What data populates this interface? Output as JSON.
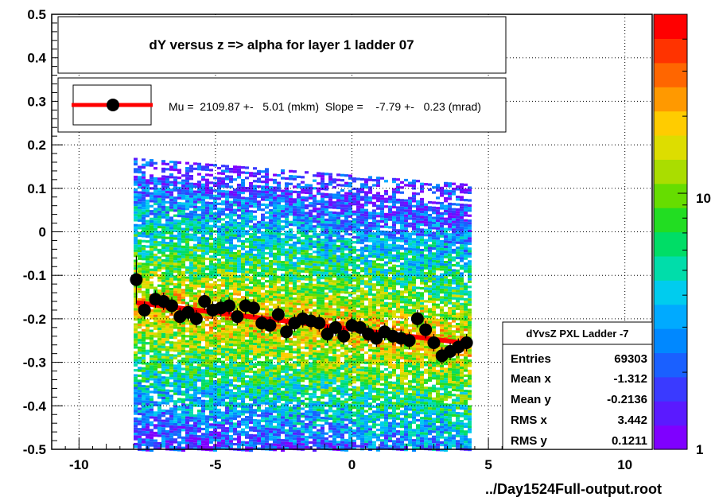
{
  "chart_data": {
    "type": "heatmap",
    "title": "dY versus  z  => alpha for layer 1 ladder 07",
    "xlabel": "",
    "ylabel": "",
    "xlim": [
      -11,
      11
    ],
    "ylim": [
      -0.5,
      0.5
    ],
    "x_ticks": [
      "-10",
      "-5",
      "0",
      "5",
      "10"
    ],
    "x_tick_values": [
      -10,
      -5,
      0,
      5,
      10
    ],
    "y_ticks": [
      "0.5",
      "0.4",
      "0.3",
      "0.2",
      "0.1",
      "0",
      "-0.1",
      "-0.2",
      "-0.3",
      "-0.4",
      "-0.5"
    ],
    "y_tick_values": [
      0.5,
      0.4,
      0.3,
      0.2,
      0.1,
      0,
      -0.1,
      -0.2,
      -0.3,
      -0.4,
      -0.5
    ],
    "grid": true,
    "z_scale": "log",
    "z_ticks": [
      "10",
      "1"
    ],
    "z_tick_values": [
      10,
      1
    ],
    "z_range": [
      1,
      50
    ],
    "heat_extent": {
      "x": [
        -8,
        4.3
      ],
      "y": [
        -0.5,
        0.17
      ]
    },
    "legend": {
      "placement": "top-left",
      "text": "Mu =  2109.87 +-   5.01 (mkm)  Slope =    -7.79 +-   0.23 (mrad)",
      "marker_color": "#000000",
      "line_color": "#ff0000"
    },
    "profile_points": {
      "x": [
        -7.9,
        -7.6,
        -7.2,
        -6.9,
        -6.6,
        -6.3,
        -6.0,
        -5.7,
        -5.4,
        -5.1,
        -4.8,
        -4.5,
        -4.2,
        -3.9,
        -3.6,
        -3.3,
        -3.0,
        -2.7,
        -2.4,
        -2.1,
        -1.8,
        -1.5,
        -1.2,
        -0.9,
        -0.6,
        -0.3,
        0.0,
        0.3,
        0.6,
        0.9,
        1.2,
        1.5,
        1.8,
        2.1,
        2.4,
        2.7,
        3.0,
        3.3,
        3.6,
        3.9,
        4.2
      ],
      "y": [
        -0.11,
        -0.18,
        -0.155,
        -0.16,
        -0.17,
        -0.195,
        -0.185,
        -0.2,
        -0.16,
        -0.18,
        -0.175,
        -0.17,
        -0.195,
        -0.17,
        -0.175,
        -0.21,
        -0.215,
        -0.19,
        -0.23,
        -0.21,
        -0.2,
        -0.205,
        -0.21,
        -0.235,
        -0.22,
        -0.24,
        -0.215,
        -0.22,
        -0.235,
        -0.245,
        -0.23,
        -0.24,
        -0.245,
        -0.25,
        -0.2,
        -0.225,
        -0.255,
        -0.285,
        -0.275,
        -0.265,
        -0.255
      ],
      "color": "#000000"
    },
    "fit_line": {
      "x": [
        -7.9,
        4.3
      ],
      "y": [
        -0.163,
        -0.257
      ],
      "color": "#ff0000"
    },
    "stats_box": {
      "title": "dYvsZ PXL Ladder -7",
      "rows": [
        {
          "label": "Entries",
          "value": "69303"
        },
        {
          "label": "Mean x",
          "value": "-1.312"
        },
        {
          "label": "Mean y",
          "value": "-0.2136"
        },
        {
          "label": "RMS x",
          "value": "3.442"
        },
        {
          "label": "RMS y",
          "value": "0.1211"
        }
      ]
    },
    "footer": "../Day1524Full-output.root",
    "palette": [
      "#7f00ff",
      "#5a1aff",
      "#3a3aff",
      "#1a60ff",
      "#0088ff",
      "#00aaff",
      "#00ccee",
      "#00ddaa",
      "#00dd66",
      "#22dd22",
      "#66dd00",
      "#aadd00",
      "#dddd00",
      "#ffcc00",
      "#ff9900",
      "#ff6600",
      "#ff3300",
      "#ff0000"
    ]
  }
}
